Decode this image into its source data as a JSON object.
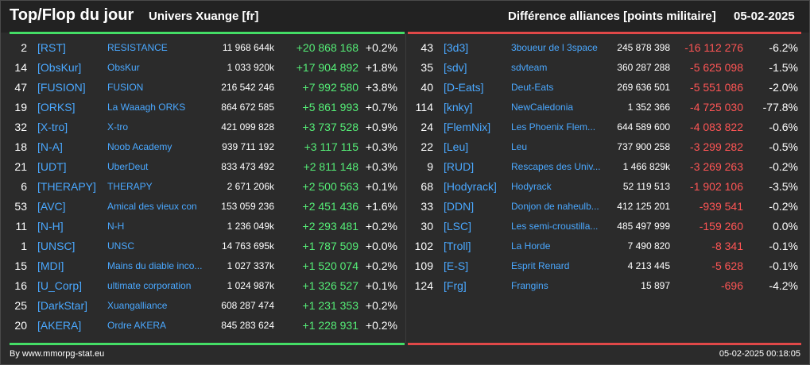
{
  "header": {
    "title": "Top/Flop du jour",
    "universe": "Univers Xuange [fr]",
    "subtitle": "Différence alliances [points militaire]",
    "date": "05-02-2025"
  },
  "colors": {
    "positive": "#55ee77",
    "negative": "#ff5555",
    "tag": "#4aa8ff",
    "top_bar": "#44dd66",
    "flop_bar": "#e04848"
  },
  "top": [
    {
      "rank": "2",
      "tag": "[RST]",
      "name": "RESISTANCE",
      "points": "11 968 644k",
      "diff": "+20 868 168",
      "pct": "+0.2%"
    },
    {
      "rank": "14",
      "tag": "[ObsKur]",
      "name": "ObsKur",
      "points": "1 033 920k",
      "diff": "+17 904 892",
      "pct": "+1.8%"
    },
    {
      "rank": "47",
      "tag": "[FUSION]",
      "name": "FUSION",
      "points": "216 542 246",
      "diff": "+7 992 580",
      "pct": "+3.8%"
    },
    {
      "rank": "19",
      "tag": "[ORKS]",
      "name": "La Waaagh ORKS",
      "points": "864 672 585",
      "diff": "+5 861 993",
      "pct": "+0.7%"
    },
    {
      "rank": "32",
      "tag": "[X-tro]",
      "name": "X-tro",
      "points": "421 099 828",
      "diff": "+3 737 528",
      "pct": "+0.9%"
    },
    {
      "rank": "18",
      "tag": "[N-A]",
      "name": "Noob Academy",
      "points": "939 711 192",
      "diff": "+3 117 115",
      "pct": "+0.3%"
    },
    {
      "rank": "21",
      "tag": "[UDT]",
      "name": "UberDeut",
      "points": "833 473 492",
      "diff": "+2 811 148",
      "pct": "+0.3%"
    },
    {
      "rank": "6",
      "tag": "[THERAPY]",
      "name": "THERAPY",
      "points": "2 671 206k",
      "diff": "+2 500 563",
      "pct": "+0.1%"
    },
    {
      "rank": "53",
      "tag": "[AVC]",
      "name": "Amical des vieux con",
      "points": "153 059 236",
      "diff": "+2 451 436",
      "pct": "+1.6%"
    },
    {
      "rank": "11",
      "tag": "[N-H]",
      "name": "N-H",
      "points": "1 236 049k",
      "diff": "+2 293 481",
      "pct": "+0.2%"
    },
    {
      "rank": "1",
      "tag": "[UNSC]",
      "name": "UNSC",
      "points": "14 763 695k",
      "diff": "+1 787 509",
      "pct": "+0.0%"
    },
    {
      "rank": "15",
      "tag": "[MDI]",
      "name": "Mains du diable inco...",
      "points": "1 027 337k",
      "diff": "+1 520 074",
      "pct": "+0.2%"
    },
    {
      "rank": "16",
      "tag": "[U_Corp]",
      "name": "ultimate corporation",
      "points": "1 024 987k",
      "diff": "+1 326 527",
      "pct": "+0.1%"
    },
    {
      "rank": "25",
      "tag": "[DarkStar]",
      "name": "Xuangalliance",
      "points": "608 287 474",
      "diff": "+1 231 353",
      "pct": "+0.2%"
    },
    {
      "rank": "20",
      "tag": "[AKERA]",
      "name": "Ordre AKERA",
      "points": "845 283 624",
      "diff": "+1 228 931",
      "pct": "+0.2%"
    }
  ],
  "flop": [
    {
      "rank": "43",
      "tag": "[3d3]",
      "name": "3boueur de l 3space",
      "points": "245 878 398",
      "diff": "-16 112 276",
      "pct": "-6.2%"
    },
    {
      "rank": "35",
      "tag": "[sdv]",
      "name": "sdvteam",
      "points": "360 287 288",
      "diff": "-5 625 098",
      "pct": "-1.5%"
    },
    {
      "rank": "40",
      "tag": "[D-Eats]",
      "name": "Deut-Eats",
      "points": "269 636 501",
      "diff": "-5 551 086",
      "pct": "-2.0%"
    },
    {
      "rank": "114",
      "tag": "[knky]",
      "name": "NewCaledonia",
      "points": "1 352 366",
      "diff": "-4 725 030",
      "pct": "-77.8%"
    },
    {
      "rank": "24",
      "tag": "[FlemNix]",
      "name": "Les Phoenix Flem...",
      "points": "644 589 600",
      "diff": "-4 083 822",
      "pct": "-0.6%"
    },
    {
      "rank": "22",
      "tag": "[Leu]",
      "name": "Leu",
      "points": "737 900 258",
      "diff": "-3 299 282",
      "pct": "-0.5%"
    },
    {
      "rank": "9",
      "tag": "[RUD]",
      "name": "Rescapes des Univ...",
      "points": "1 466 829k",
      "diff": "-3 269 263",
      "pct": "-0.2%"
    },
    {
      "rank": "68",
      "tag": "[Hodyrack]",
      "name": "Hodyrack",
      "points": "52 119 513",
      "diff": "-1 902 106",
      "pct": "-3.5%"
    },
    {
      "rank": "33",
      "tag": "[DDN]",
      "name": "Donjon de naheulb...",
      "points": "412 125 201",
      "diff": "-939 541",
      "pct": "-0.2%"
    },
    {
      "rank": "30",
      "tag": "[LSC]",
      "name": "Les semi-croustilla...",
      "points": "485 497 999",
      "diff": "-159 260",
      "pct": "0.0%"
    },
    {
      "rank": "102",
      "tag": "[Troll]",
      "name": "La Horde",
      "points": "7 490 820",
      "diff": "-8 341",
      "pct": "-0.1%"
    },
    {
      "rank": "109",
      "tag": "[E-S]",
      "name": "Esprit Renard",
      "points": "4 213 445",
      "diff": "-5 628",
      "pct": "-0.1%"
    },
    {
      "rank": "124",
      "tag": "[Frg]",
      "name": "Frangins",
      "points": "15 897",
      "diff": "-696",
      "pct": "-4.2%"
    }
  ],
  "footer": {
    "credit": "By www.mmorpg-stat.eu",
    "timestamp": "05-02-2025 00:18:05"
  }
}
